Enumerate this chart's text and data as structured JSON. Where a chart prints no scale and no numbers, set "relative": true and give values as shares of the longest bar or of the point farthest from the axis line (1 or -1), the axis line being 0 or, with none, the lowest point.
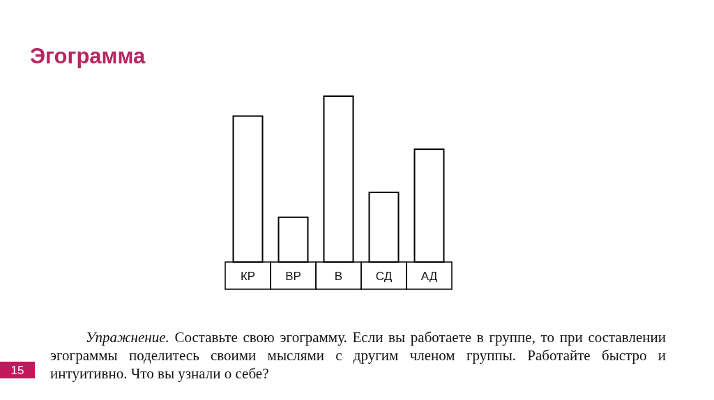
{
  "chart_data": {
    "type": "bar",
    "title": "Эгограмма",
    "categories": [
      "КР",
      "ВР",
      "В",
      "СД",
      "АД"
    ],
    "values": [
      0.88,
      0.27,
      1,
      0.42,
      0.68
    ],
    "color": "#ffffff",
    "relative": true,
    "annotations": [
      "Упражнение.",
      "Составьте свою эгограмму. Если вы работаете в группе, то при составлении эгограммы поделитесь своими мыслями с другим членом группы. Работайте быстро и интуитивно. Что вы узнали о себе?",
      "15"
    ]
  }
}
